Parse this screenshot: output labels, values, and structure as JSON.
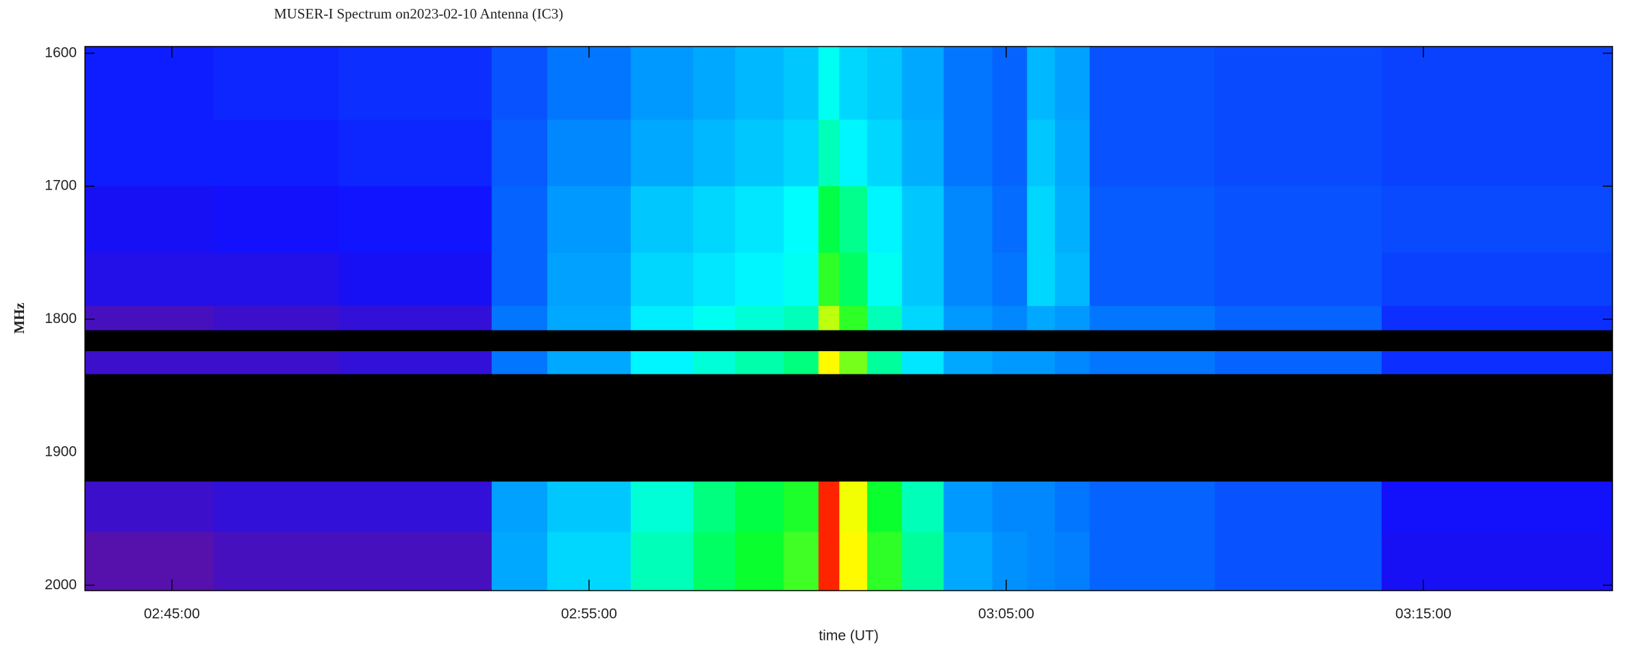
{
  "chart_data": {
    "type": "heatmap",
    "title": "MUSER-I Spectrum on2023-02-10 Antenna (IC3)",
    "x_label": "time (UT)",
    "y_label": "MHz",
    "xlim": [
      "02:42:55",
      "03:19:32"
    ],
    "xticks": [
      "02:45:00",
      "02:55:00",
      "03:05:00",
      "03:15:00"
    ],
    "ylim": [
      1595,
      2004
    ],
    "y_inverted": true,
    "yticks": [
      1600,
      1700,
      1800,
      1900,
      2000
    ],
    "x_edges": [
      "02:42:55",
      "02:46:00",
      "02:49:00",
      "02:52:40",
      "02:54:00",
      "02:56:00",
      "02:57:30",
      "02:58:30",
      "02:59:40",
      "03:00:30",
      "03:01:00",
      "03:01:40",
      "03:02:30",
      "03:03:30",
      "03:04:40",
      "03:05:30",
      "03:06:10",
      "03:07:00",
      "03:10:00",
      "03:14:00",
      "03:19:32"
    ],
    "y_edges": [
      1595,
      1650,
      1700,
      1750,
      1790,
      1808,
      1824,
      1841,
      1922,
      1960,
      2004
    ],
    "zlim": [
      0,
      1
    ],
    "colormap": [
      "#1a0030",
      "#5a10a8",
      "#1010ff",
      "#0090ff",
      "#00ffff",
      "#00ff30",
      "#ffff00",
      "#ff0000"
    ],
    "missing_color": "#000000",
    "z": [
      [
        0.3,
        0.31,
        0.32,
        0.36,
        0.4,
        0.44,
        0.46,
        0.48,
        0.5,
        0.58,
        0.52,
        0.5,
        0.46,
        0.4,
        0.38,
        0.48,
        0.45,
        0.36,
        0.35,
        0.34
      ],
      [
        0.3,
        0.3,
        0.31,
        0.37,
        0.42,
        0.46,
        0.48,
        0.5,
        0.52,
        0.62,
        0.56,
        0.52,
        0.47,
        0.4,
        0.38,
        0.5,
        0.46,
        0.36,
        0.35,
        0.34
      ],
      [
        0.27,
        0.28,
        0.29,
        0.38,
        0.44,
        0.5,
        0.52,
        0.54,
        0.57,
        0.7,
        0.65,
        0.56,
        0.5,
        0.42,
        0.39,
        0.52,
        0.47,
        0.37,
        0.36,
        0.35
      ],
      [
        0.25,
        0.25,
        0.27,
        0.38,
        0.45,
        0.52,
        0.54,
        0.56,
        0.58,
        0.74,
        0.68,
        0.58,
        0.5,
        0.42,
        0.4,
        0.52,
        0.48,
        0.37,
        0.36,
        0.34
      ],
      [
        0.18,
        0.2,
        0.22,
        0.4,
        0.46,
        0.55,
        0.58,
        0.6,
        0.62,
        0.82,
        0.74,
        0.62,
        0.52,
        0.44,
        0.42,
        0.46,
        0.44,
        0.4,
        0.38,
        0.32
      ],
      [
        null,
        null,
        null,
        null,
        null,
        null,
        null,
        null,
        null,
        null,
        null,
        null,
        null,
        null,
        null,
        null,
        null,
        null,
        null,
        null
      ],
      [
        0.2,
        0.2,
        0.22,
        0.4,
        0.46,
        0.56,
        0.6,
        0.63,
        0.66,
        0.86,
        0.78,
        0.64,
        0.54,
        0.46,
        0.44,
        0.44,
        0.42,
        0.4,
        0.38,
        0.32
      ],
      [
        null,
        null,
        null,
        null,
        null,
        null,
        null,
        null,
        null,
        null,
        null,
        null,
        null,
        null,
        null,
        null,
        null,
        null,
        null,
        null
      ],
      [
        0.2,
        0.22,
        0.22,
        0.45,
        0.5,
        0.6,
        0.66,
        0.7,
        0.73,
        0.98,
        0.85,
        0.72,
        0.62,
        0.44,
        0.42,
        0.42,
        0.4,
        0.38,
        0.36,
        0.28
      ],
      [
        0.15,
        0.18,
        0.18,
        0.46,
        0.52,
        0.62,
        0.68,
        0.72,
        0.75,
        0.98,
        0.86,
        0.74,
        0.64,
        0.46,
        0.43,
        0.42,
        0.41,
        0.38,
        0.36,
        0.27
      ]
    ]
  }
}
